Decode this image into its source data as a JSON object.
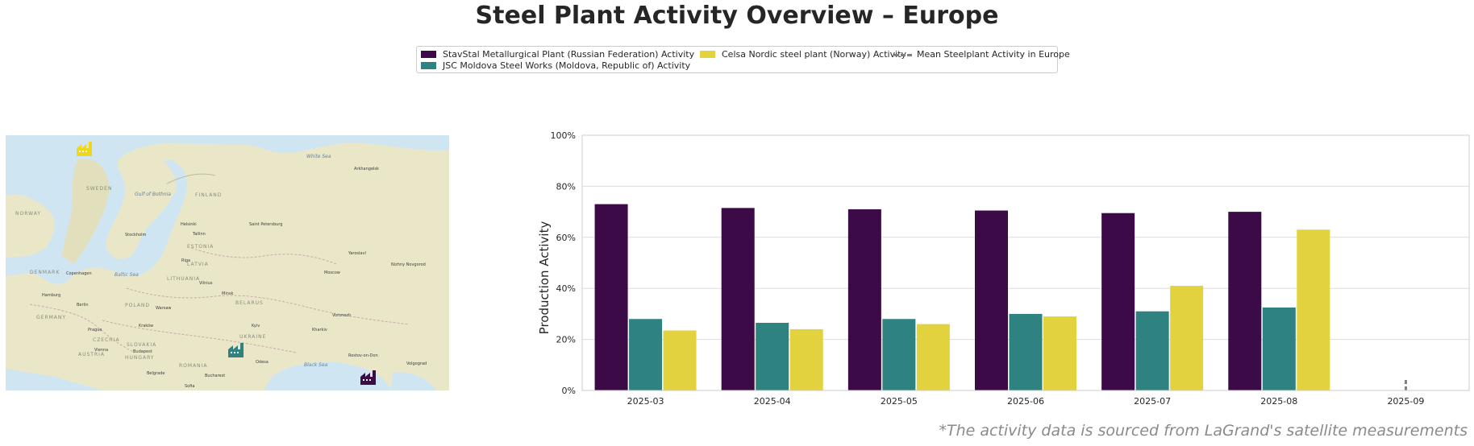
{
  "title": "Steel Plant Activity Overview – Europe",
  "legend": {
    "items": [
      {
        "label": "StavStal Metallurgical Plant (Russian Federation) Activity",
        "color": "#3b0a47",
        "kind": "bar"
      },
      {
        "label": "JSC Moldova Steel Works (Moldova, Republic of) Activity",
        "color": "#2e8280",
        "kind": "bar"
      },
      {
        "label": "Celsa Nordic steel plant (Norway) Activity",
        "color": "#e2d23e",
        "kind": "bar"
      },
      {
        "label": "Mean Steelplant Activity in Europe",
        "color": "#808080",
        "kind": "dashed-line"
      }
    ]
  },
  "map": {
    "seas": [
      "Baltic Sea",
      "Gulf of Bothnia",
      "White Sea",
      "Black Sea"
    ],
    "countries": [
      "SWEDEN",
      "FINLAND",
      "NORWAY",
      "ESTONIA",
      "LATVIA",
      "LITHUANIA",
      "BELARUS",
      "POLAND",
      "UKRAINE",
      "GERMANY",
      "DENMARK",
      "ROMANIA",
      "CZECHIA",
      "SLOVAKIA",
      "AUSTRIA",
      "HUNGARY"
    ],
    "cities": [
      "Arkhangelsk",
      "Helsinki",
      "Saint Petersburg",
      "Stockholm",
      "Tallinn",
      "Riga",
      "Vilnius",
      "Minsk",
      "Moscow",
      "Yaroslavl",
      "Nizhny Novgorod",
      "Copenhagen",
      "Hamburg",
      "Berlin",
      "Warsaw",
      "Kyiv",
      "Kharkiv",
      "Odesa",
      "Prague",
      "Vienna",
      "Budapest",
      "Bucharest",
      "Belgrade",
      "Sofia",
      "Volgograd",
      "Rostov-on-Don",
      "Voronezh",
      "Kraków"
    ],
    "markers": [
      {
        "plant": "Celsa Nordic steel plant",
        "color": "#f2d61e",
        "icon": "factory-icon"
      },
      {
        "plant": "JSC Moldova Steel Works",
        "color": "#2e8280",
        "icon": "factory-icon"
      },
      {
        "plant": "StavStal Metallurgical Plant",
        "color": "#3b0a47",
        "icon": "factory-icon"
      }
    ]
  },
  "chart_data": {
    "type": "bar",
    "categories": [
      "2025-03",
      "2025-04",
      "2025-05",
      "2025-06",
      "2025-07",
      "2025-08",
      "2025-09"
    ],
    "series": [
      {
        "name": "StavStal Metallurgical Plant (Russian Federation) Activity",
        "color": "#3b0a47",
        "values": [
          73,
          71.5,
          71,
          70.5,
          69.5,
          70,
          null
        ]
      },
      {
        "name": "JSC Moldova Steel Works (Moldova, Republic of) Activity",
        "color": "#2e8280",
        "values": [
          28,
          26.5,
          28,
          30,
          31,
          32.5,
          null
        ]
      },
      {
        "name": "Celsa Nordic steel plant (Norway) Activity",
        "color": "#e2d23e",
        "values": [
          23.5,
          24,
          26,
          29,
          41,
          63,
          null
        ]
      }
    ],
    "mean_line": {
      "name": "Mean Steelplant Activity in Europe",
      "color": "#808080",
      "x": "2025-09",
      "y": [
        0,
        4.5
      ]
    },
    "xlabel": "",
    "ylabel": "Production Activity",
    "ylim": [
      0,
      100
    ],
    "yticks": [
      "0%",
      "20%",
      "40%",
      "60%",
      "80%",
      "100%"
    ],
    "grid": true
  },
  "footnote": "*The activity data is sourced from LaGrand's satellite measurements"
}
